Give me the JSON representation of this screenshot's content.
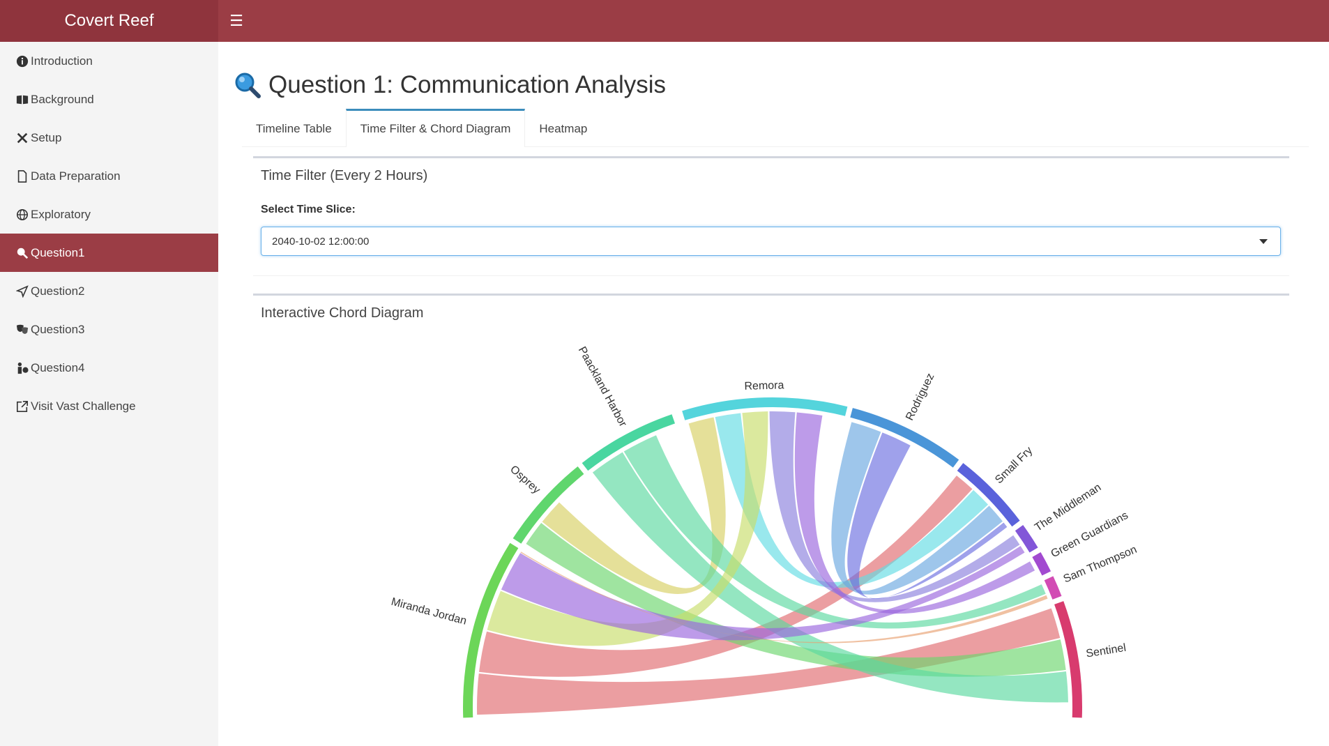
{
  "header": {
    "brand": "Covert Reef",
    "menu_icon": "hamburger-icon",
    "color": "#9b3d45"
  },
  "sidebar": {
    "items": [
      {
        "label": "Introduction",
        "icon": "info-icon"
      },
      {
        "label": "Background",
        "icon": "book-icon"
      },
      {
        "label": "Setup",
        "icon": "tools-icon"
      },
      {
        "label": "Data Preparation",
        "icon": "file-icon"
      },
      {
        "label": "Exploratory",
        "icon": "globe-icon"
      },
      {
        "label": "Question1",
        "icon": "search-icon",
        "active": true
      },
      {
        "label": "Question2",
        "icon": "paper-plane-icon"
      },
      {
        "label": "Question3",
        "icon": "theater-masks-icon"
      },
      {
        "label": "Question4",
        "icon": "person-question-icon"
      },
      {
        "label": "Visit Vast Challenge",
        "icon": "external-link-icon"
      }
    ]
  },
  "main": {
    "title": "Question 1: Communication Analysis",
    "title_icon": "magnifying-glass-icon",
    "tabs": [
      {
        "label": "Timeline Table"
      },
      {
        "label": "Time Filter & Chord Diagram",
        "active": true
      },
      {
        "label": "Heatmap"
      }
    ],
    "filter_box": {
      "title": "Time Filter (Every 2 Hours)",
      "select_label": "Select Time Slice:",
      "select_value": "2040-10-02 12:00:00"
    },
    "chord_box": {
      "title": "Interactive Chord Diagram",
      "nodes": [
        "Remora",
        "Rodriguez",
        "Small Fry",
        "The Middleman",
        "Green Guardians",
        "Sam Thompson",
        "Sentinel",
        "Miranda Jordan",
        "Osprey",
        "Paackland Harbor"
      ]
    }
  },
  "chart_data": {
    "type": "chord",
    "groups": [
      {
        "name": "Remora",
        "color": "#54d4dc"
      },
      {
        "name": "Rodriguez",
        "color": "#4a95d8"
      },
      {
        "name": "Small Fry",
        "color": "#5a62db"
      },
      {
        "name": "The Middleman",
        "color": "#8256d8"
      },
      {
        "name": "Green Guardians",
        "color": "#a24ad0"
      },
      {
        "name": "Sam Thompson",
        "color": "#d24cb4"
      },
      {
        "name": "Sentinel",
        "color": "#d83b6e"
      },
      {
        "name": "Miranda Jordan",
        "color": "#6cd658"
      },
      {
        "name": "Osprey",
        "color": "#5fd66d"
      },
      {
        "name": "Paackland Harbor",
        "color": "#49d6a0"
      }
    ],
    "chords": [
      {
        "from": "Miranda Jordan",
        "to": "Sentinel",
        "color": "#e06a6e"
      },
      {
        "from": "Miranda Jordan",
        "to": "Small Fry",
        "color": "#e06a6e"
      },
      {
        "from": "Osprey",
        "to": "Sentinel",
        "color": "#6cd66d"
      },
      {
        "from": "Osprey",
        "to": "Remora",
        "color": "#d7cf63"
      },
      {
        "from": "Paackland Harbor",
        "to": "Sentinel",
        "color": "#5ad8a0"
      },
      {
        "from": "Paackland Harbor",
        "to": "Sam Thompson",
        "color": "#5ad8a0"
      },
      {
        "from": "Remora",
        "to": "Small Fry",
        "color": "#62dce4"
      },
      {
        "from": "Remora",
        "to": "Miranda Jordan",
        "color": "#c8dd6a"
      },
      {
        "from": "Remora",
        "to": "The Middleman",
        "color": "#8a80dd"
      },
      {
        "from": "Rodriguez",
        "to": "Small Fry",
        "color": "#6aa8e0"
      },
      {
        "from": "Small Fry",
        "to": "Rodriguez",
        "color": "#6b6fe0"
      },
      {
        "from": "Green Guardians",
        "to": "Remora",
        "color": "#9a66dd"
      },
      {
        "from": "The Middleman",
        "to": "Miranda Jordan",
        "color": "#9a66dd"
      },
      {
        "from": "Sam Thompson",
        "to": "Miranda Jordan",
        "color": "#e8a070"
      }
    ]
  }
}
